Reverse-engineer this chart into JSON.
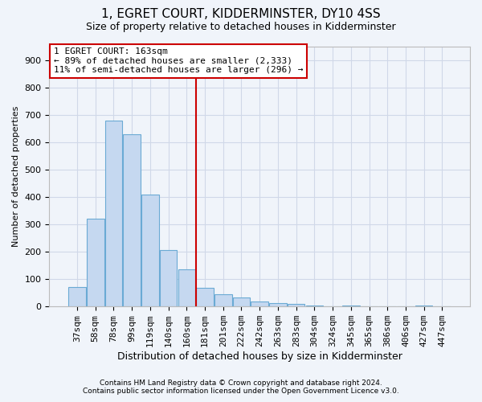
{
  "title": "1, EGRET COURT, KIDDERMINSTER, DY10 4SS",
  "subtitle": "Size of property relative to detached houses in Kidderminster",
  "xlabel": "Distribution of detached houses by size in Kidderminster",
  "ylabel": "Number of detached properties",
  "footnote1": "Contains HM Land Registry data © Crown copyright and database right 2024.",
  "footnote2": "Contains public sector information licensed under the Open Government Licence v3.0.",
  "categories": [
    "37sqm",
    "58sqm",
    "78sqm",
    "99sqm",
    "119sqm",
    "140sqm",
    "160sqm",
    "181sqm",
    "201sqm",
    "222sqm",
    "242sqm",
    "263sqm",
    "283sqm",
    "304sqm",
    "324sqm",
    "345sqm",
    "365sqm",
    "386sqm",
    "406sqm",
    "427sqm",
    "447sqm"
  ],
  "values": [
    70,
    320,
    680,
    630,
    410,
    205,
    135,
    68,
    46,
    32,
    18,
    12,
    10,
    5,
    0,
    5,
    0,
    0,
    0,
    5,
    0
  ],
  "bar_color": "#c5d8f0",
  "bar_edge_color": "#6aaad4",
  "vline_x": 6.5,
  "vline_color": "#cc0000",
  "annotation_line1": "1 EGRET COURT: 163sqm",
  "annotation_line2": "← 89% of detached houses are smaller (2,333)",
  "annotation_line3": "11% of semi-detached houses are larger (296) →",
  "annotation_box_facecolor": "#ffffff",
  "annotation_box_edgecolor": "#cc0000",
  "ylim": [
    0,
    950
  ],
  "yticks": [
    0,
    100,
    200,
    300,
    400,
    500,
    600,
    700,
    800,
    900
  ],
  "grid_color": "#d0d8e8",
  "background_color": "#f0f4fa",
  "plot_bg_color": "#f0f4fa",
  "title_fontsize": 11,
  "subtitle_fontsize": 9,
  "tick_fontsize": 8,
  "ylabel_fontsize": 8,
  "xlabel_fontsize": 9,
  "annotation_fontsize": 8,
  "footnote_fontsize": 6.5
}
